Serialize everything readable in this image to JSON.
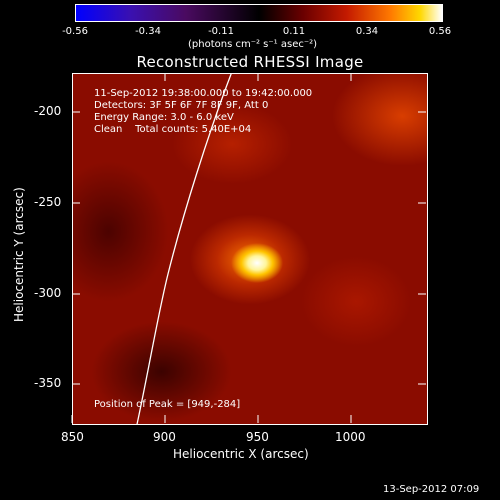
{
  "colorbar": {
    "ticks": [
      "-0.56",
      "-0.34",
      "-0.11",
      "0.11",
      "0.34",
      "0.56"
    ],
    "unit": "(photons cm⁻² s⁻¹ asec⁻²)",
    "range": [
      -0.56,
      0.56
    ]
  },
  "title": "Reconstructed RHESSI Image",
  "info": {
    "time": "11-Sep-2012 19:38:00.000 to 19:42:00.000",
    "detectors": "Detectors: 3F 5F 6F 7F 8F 9F, Att 0",
    "energy": "Energy Range: 3.0 - 6.0 keV",
    "clean": "Clean    Total counts: 5.40E+04",
    "peak": "Position of Peak = [949,-284]"
  },
  "axes": {
    "xlabel": "Heliocentric X (arcsec)",
    "ylabel": "Heliocentric Y (arcsec)",
    "xticks": [
      "850",
      "900",
      "950",
      "1000"
    ],
    "yticks": [
      "-200",
      "-250",
      "-300",
      "-350"
    ],
    "xlim": [
      850,
      1040
    ],
    "ylim": [
      -372,
      -180
    ]
  },
  "limb_color": "#ffffff",
  "timestamp": "13-Sep-2012 07:09"
}
